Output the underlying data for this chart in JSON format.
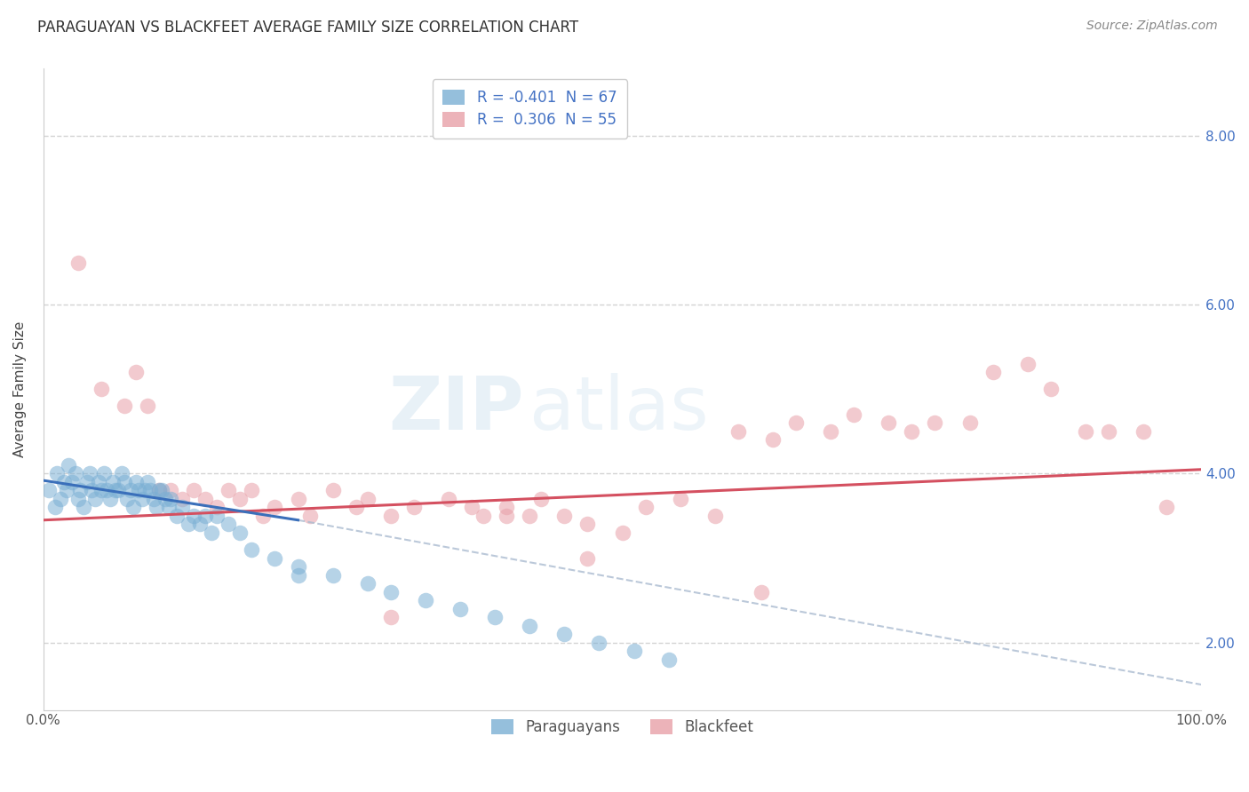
{
  "title": "PARAGUAYAN VS BLACKFEET AVERAGE FAMILY SIZE CORRELATION CHART",
  "source": "Source: ZipAtlas.com",
  "ylabel": "Average Family Size",
  "xlim": [
    0.0,
    100.0
  ],
  "ylim": [
    1.2,
    8.8
  ],
  "yticks": [
    2.0,
    4.0,
    6.0,
    8.0
  ],
  "xticks": [
    0.0,
    100.0
  ],
  "xticklabels": [
    "0.0%",
    "100.0%"
  ],
  "yticklabels_right": [
    "2.00",
    "4.00",
    "6.00",
    "8.00"
  ],
  "paraguayan_color": "#7bafd4",
  "blackfeet_color": "#e8a0a8",
  "paraguayan_line_color": "#3a6fba",
  "blackfeet_line_color": "#d45060",
  "dashed_line_color": "#aabbd0",
  "paraguayan_R": -0.401,
  "paraguayan_N": 67,
  "blackfeet_R": 0.306,
  "blackfeet_N": 55,
  "legend_labels": [
    "Paraguayans",
    "Blackfeet"
  ],
  "watermark": "ZIPatlas",
  "background_color": "#ffffff",
  "grid_color": "#c8c8c8",
  "paraguayan_scatter_x": [
    0.5,
    1.0,
    1.2,
    1.5,
    1.8,
    2.0,
    2.2,
    2.5,
    2.8,
    3.0,
    3.2,
    3.5,
    3.8,
    4.0,
    4.2,
    4.5,
    4.8,
    5.0,
    5.2,
    5.5,
    5.8,
    6.0,
    6.2,
    6.5,
    6.8,
    7.0,
    7.2,
    7.5,
    7.8,
    8.0,
    8.2,
    8.5,
    8.8,
    9.0,
    9.2,
    9.5,
    9.8,
    10.0,
    10.2,
    10.5,
    10.8,
    11.0,
    11.5,
    12.0,
    12.5,
    13.0,
    13.5,
    14.0,
    14.5,
    15.0,
    16.0,
    17.0,
    18.0,
    20.0,
    22.0,
    25.0,
    28.0,
    30.0,
    33.0,
    36.0,
    39.0,
    42.0,
    45.0,
    48.0,
    51.0,
    54.0,
    22.0
  ],
  "paraguayan_scatter_y": [
    3.8,
    3.6,
    4.0,
    3.7,
    3.9,
    3.8,
    4.1,
    3.9,
    4.0,
    3.7,
    3.8,
    3.6,
    3.9,
    4.0,
    3.8,
    3.7,
    3.9,
    3.8,
    4.0,
    3.8,
    3.7,
    3.9,
    3.8,
    3.8,
    4.0,
    3.9,
    3.7,
    3.8,
    3.6,
    3.9,
    3.8,
    3.7,
    3.8,
    3.9,
    3.8,
    3.7,
    3.6,
    3.8,
    3.8,
    3.7,
    3.6,
    3.7,
    3.5,
    3.6,
    3.4,
    3.5,
    3.4,
    3.5,
    3.3,
    3.5,
    3.4,
    3.3,
    3.1,
    3.0,
    2.9,
    2.8,
    2.7,
    2.6,
    2.5,
    2.4,
    2.3,
    2.2,
    2.1,
    2.0,
    1.9,
    1.8,
    2.8
  ],
  "blackfeet_scatter_x": [
    3.0,
    5.0,
    7.0,
    8.0,
    9.0,
    10.0,
    11.0,
    12.0,
    13.0,
    14.0,
    15.0,
    16.0,
    17.0,
    18.0,
    19.0,
    20.0,
    22.0,
    23.0,
    25.0,
    27.0,
    28.0,
    30.0,
    32.0,
    35.0,
    37.0,
    38.0,
    40.0,
    42.0,
    43.0,
    45.0,
    47.0,
    50.0,
    52.0,
    55.0,
    58.0,
    60.0,
    63.0,
    65.0,
    68.0,
    70.0,
    73.0,
    75.0,
    77.0,
    80.0,
    82.0,
    85.0,
    87.0,
    90.0,
    92.0,
    95.0,
    97.0,
    40.0,
    47.0,
    62.0,
    30.0
  ],
  "blackfeet_scatter_y": [
    6.5,
    5.0,
    4.8,
    5.2,
    4.8,
    3.8,
    3.8,
    3.7,
    3.8,
    3.7,
    3.6,
    3.8,
    3.7,
    3.8,
    3.5,
    3.6,
    3.7,
    3.5,
    3.8,
    3.6,
    3.7,
    3.5,
    3.6,
    3.7,
    3.6,
    3.5,
    3.6,
    3.5,
    3.7,
    3.5,
    3.4,
    3.3,
    3.6,
    3.7,
    3.5,
    4.5,
    4.4,
    4.6,
    4.5,
    4.7,
    4.6,
    4.5,
    4.6,
    4.6,
    5.2,
    5.3,
    5.0,
    4.5,
    4.5,
    4.5,
    3.6,
    3.5,
    3.0,
    2.6,
    2.3
  ],
  "title_fontsize": 12,
  "axis_label_fontsize": 11,
  "tick_fontsize": 11,
  "legend_fontsize": 12,
  "source_fontsize": 10,
  "par_trend_x0": 0.0,
  "par_trend_y0": 3.92,
  "par_trend_x1": 22.0,
  "par_trend_y1": 3.45,
  "par_dash_x0": 22.0,
  "par_dash_y0": 3.45,
  "par_dash_x1": 100.0,
  "par_dash_y1": 1.5,
  "blk_trend_x0": 0.0,
  "blk_trend_y0": 3.45,
  "blk_trend_x1": 100.0,
  "blk_trend_y1": 4.05
}
